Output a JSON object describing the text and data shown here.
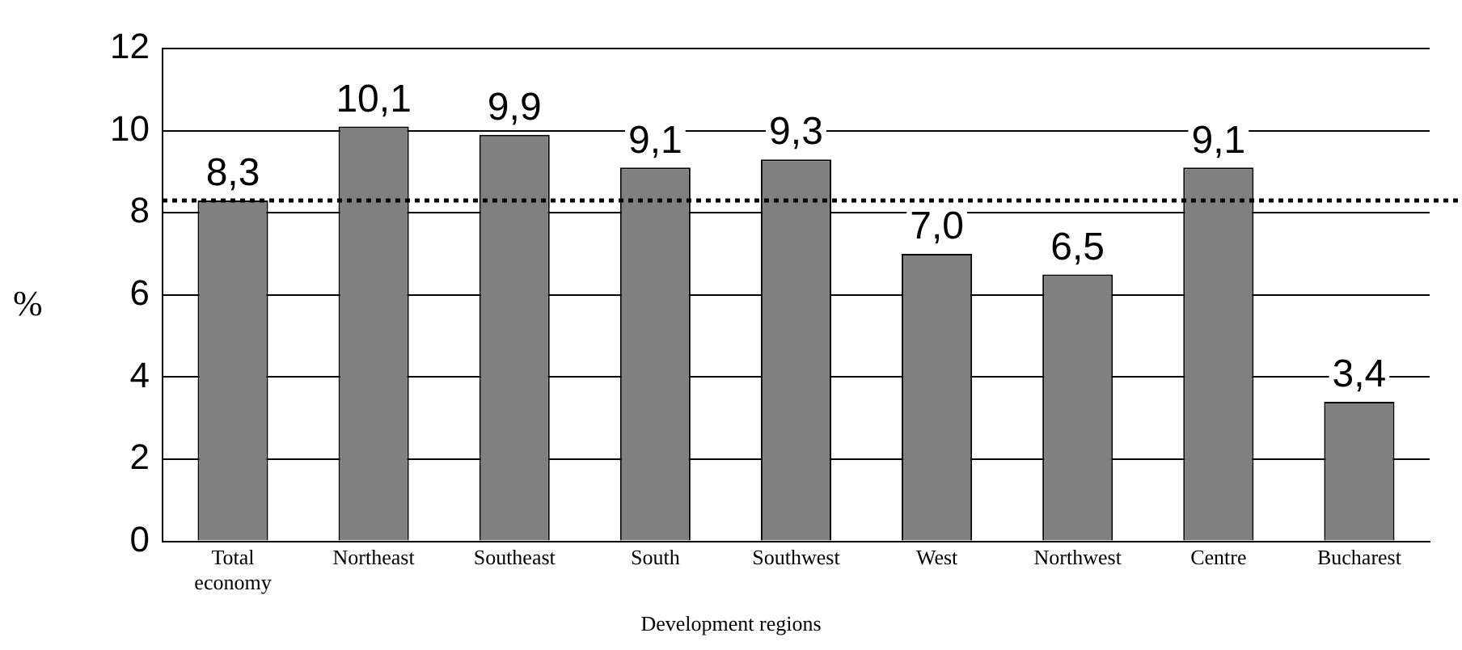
{
  "chart_data": {
    "type": "bar",
    "xlabel": "Development regions",
    "ylabel": "%",
    "categories": [
      "Total economy",
      "Northeast",
      "Southeast",
      "South",
      "Southwest",
      "West",
      "Northwest",
      "Centre",
      "Bucharest"
    ],
    "values": [
      8.3,
      10.1,
      9.9,
      9.1,
      9.3,
      7.0,
      6.5,
      9.1,
      3.4
    ],
    "value_labels": [
      "8,3",
      "10,1",
      "9,9",
      "9,1",
      "9,3",
      "7,0",
      "6,5",
      "9,1",
      "3,4"
    ],
    "color": "#808080",
    "ylim": [
      0,
      12
    ],
    "yticks": [
      0,
      2,
      4,
      6,
      8,
      10,
      12
    ],
    "grid": "y",
    "legend": false,
    "ref_lines": [
      {
        "axis": "y",
        "value": 8.3,
        "line_style": "dotted",
        "color": "#000000"
      }
    ]
  }
}
